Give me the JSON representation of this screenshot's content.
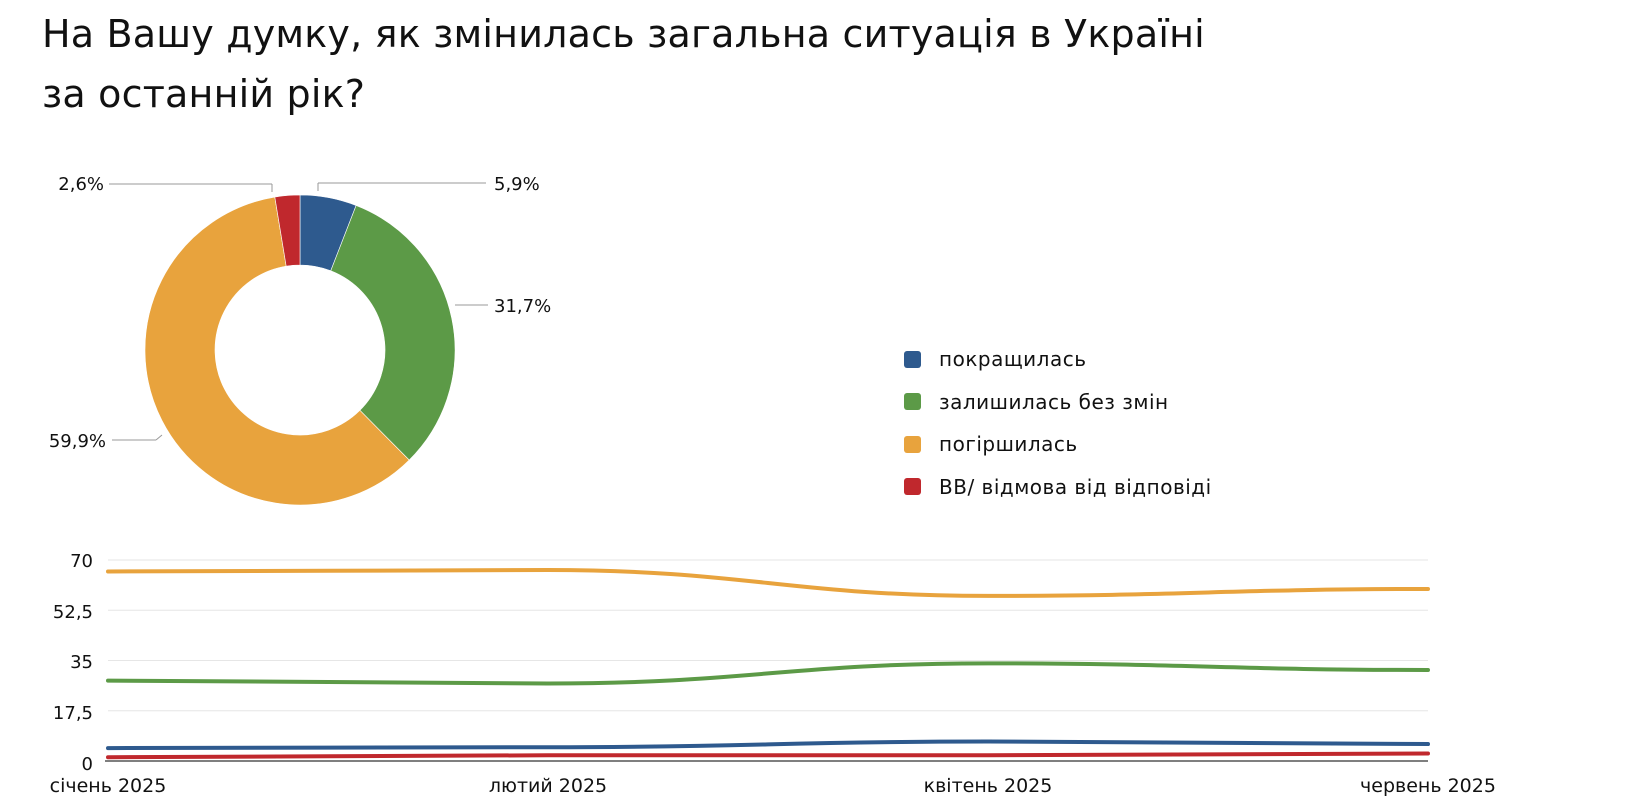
{
  "title": {
    "line1": "На Вашу думку, як змінилась загальна ситуація в Україні",
    "line2": "за останній рік?"
  },
  "colors": {
    "improved": "#2e5a8e",
    "unchanged": "#5c9a47",
    "worsened": "#e8a33d",
    "no_answer": "#c0282d",
    "grid": "#e6e6e6",
    "axis": "#333333",
    "leader": "#999999"
  },
  "legend": {
    "items": [
      {
        "label": "покращилась",
        "color": "#2e5a8e"
      },
      {
        "label": "залишилась без змін",
        "color": "#5c9a47"
      },
      {
        "label": "погіршилась",
        "color": "#e8a33d"
      },
      {
        "label": "ВВ/ відмова від відповіді",
        "color": "#c0282d"
      }
    ]
  },
  "donut_labels": {
    "improved": "5,9%",
    "unchanged": "31,7%",
    "worsened": "59,9%",
    "no_answer": "2,6%"
  },
  "line_axis": {
    "yticks": [
      "70",
      "52,5",
      "35",
      "17,5",
      "0"
    ],
    "xticks": [
      "січень 2025",
      "лютий 2025",
      "квітень 2025",
      "червень 2025"
    ]
  },
  "chart_data": [
    {
      "type": "pie",
      "subtype": "donut",
      "title": "На Вашу думку, як змінилась загальна ситуація в Україні за останній рік?",
      "categories": [
        "покращилась",
        "залишилась без змін",
        "погіршилась",
        "ВВ/ відмова від відповіді"
      ],
      "values": [
        5.9,
        31.7,
        59.9,
        2.6
      ],
      "labels": [
        "5,9%",
        "31,7%",
        "59,9%",
        "2,6%"
      ],
      "colors": [
        "#2e5a8e",
        "#5c9a47",
        "#e8a33d",
        "#c0282d"
      ],
      "legend_position": "right"
    },
    {
      "type": "line",
      "x": [
        "січень 2025",
        "лютий 2025",
        "квітень 2025",
        "червень 2025"
      ],
      "series": [
        {
          "name": "покращилась",
          "values": [
            4.5,
            4.8,
            6.8,
            5.9
          ],
          "color": "#2e5a8e"
        },
        {
          "name": "залишилась без змін",
          "values": [
            28.0,
            27.0,
            34.0,
            31.7
          ],
          "color": "#5c9a47"
        },
        {
          "name": "погіршилась",
          "values": [
            66.0,
            66.5,
            57.5,
            59.9
          ],
          "color": "#e8a33d"
        },
        {
          "name": "ВВ/ відмова від відповіді",
          "values": [
            1.3,
            2.0,
            2.0,
            2.6
          ],
          "color": "#c0282d"
        }
      ],
      "ylim": [
        0,
        70
      ],
      "yticks": [
        0,
        17.5,
        35,
        52.5,
        70
      ],
      "grid": true,
      "smooth": true,
      "xlabel": "",
      "ylabel": ""
    }
  ]
}
